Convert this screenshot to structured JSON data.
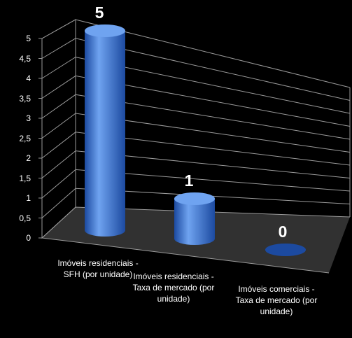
{
  "chart_data": {
    "type": "bar",
    "style": "3d-cylinder",
    "categories": [
      "Imóveis residenciais - SFH (por unidade)",
      "Imóveis residenciais - Taxa de mercado (por unidade)",
      "Imóveis comerciais - Taxa de mercado (por unidade)"
    ],
    "values": [
      5,
      1,
      0
    ],
    "data_labels": [
      "5",
      "1",
      "0"
    ],
    "yticks": [
      "0",
      "0,5",
      "1",
      "1,5",
      "2",
      "2,5",
      "3",
      "3,5",
      "4",
      "4,5",
      "5"
    ],
    "ylim": [
      0,
      5
    ],
    "grid": true,
    "legend": "none",
    "title": "",
    "xlabel": "",
    "ylabel": "",
    "colors": {
      "background": "#000000",
      "bar": "#3a78d8",
      "bar_highlight": "#6fa3f0",
      "bar_shadow": "#1c4aa0",
      "grid": "#9a9a9a",
      "floor": "#5a5a5a",
      "text": "#ffffff"
    }
  }
}
